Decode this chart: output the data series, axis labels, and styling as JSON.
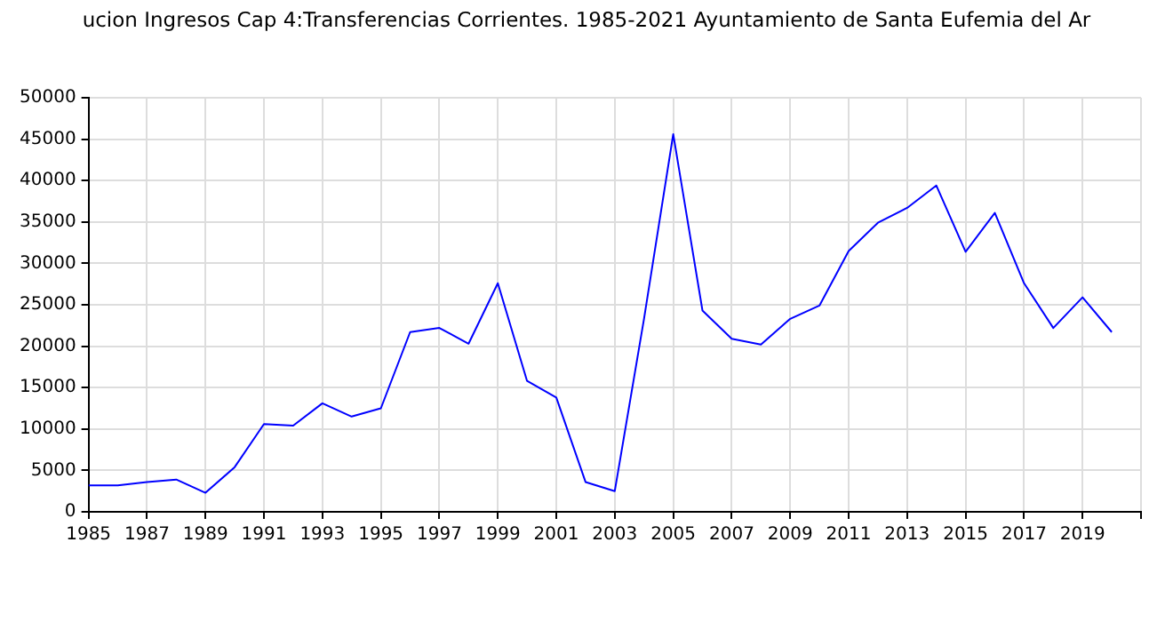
{
  "chart_data": {
    "type": "line",
    "title": "ucion Ingresos Cap 4:Transferencias Corrientes. 1985-2021 Ayuntamiento de Santa Eufemia del Ar",
    "x": [
      1985,
      1986,
      1987,
      1988,
      1989,
      1990,
      1991,
      1992,
      1993,
      1994,
      1995,
      1996,
      1997,
      1998,
      1999,
      2000,
      2001,
      2002,
      2003,
      2004,
      2005,
      2006,
      2007,
      2008,
      2009,
      2010,
      2011,
      2012,
      2013,
      2014,
      2015,
      2016,
      2017,
      2018,
      2019,
      2020
    ],
    "series": [
      {
        "color": "#0000ff",
        "values": [
          3200,
          3200,
          3600,
          3900,
          2300,
          5400,
          10600,
          10400,
          13100,
          11500,
          12500,
          21700,
          22200,
          20300,
          27600,
          15800,
          13800,
          3600,
          2500,
          23300,
          45600,
          24300,
          20900,
          20200,
          23300,
          24900,
          31500,
          34900,
          36700,
          39400,
          31400,
          36100,
          27600,
          22200,
          25900,
          21700
        ]
      }
    ],
    "xlim": [
      1985,
      2021
    ],
    "xticks": [
      1985,
      1987,
      1989,
      1991,
      1993,
      1995,
      1997,
      1999,
      2001,
      2003,
      2005,
      2007,
      2009,
      2011,
      2013,
      2015,
      2017,
      2019,
      {
        "value": 2021,
        "label": null
      }
    ],
    "ylim": [
      0,
      50000
    ],
    "yticks": [
      0,
      5000,
      10000,
      15000,
      20000,
      25000,
      30000,
      35000,
      40000,
      45000,
      50000
    ],
    "grid": true,
    "legend": false,
    "marker": "none",
    "line_style": "solid"
  }
}
